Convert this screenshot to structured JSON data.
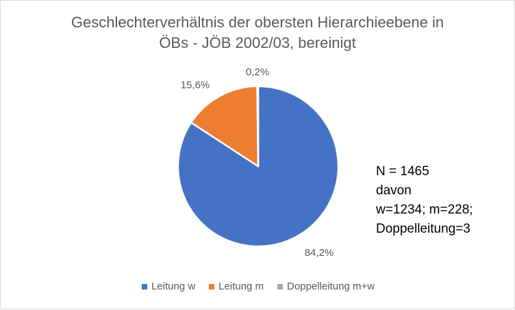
{
  "chart_data": {
    "type": "pie",
    "title": [
      "Geschlechterverhältnis der obersten Hierarchieebene in",
      "ÖBs - JÖB 2002/03, bereinigt"
    ],
    "slices": [
      {
        "name": "Leitung w",
        "value": 84.2,
        "label": "84,2%",
        "color": "#4472C4"
      },
      {
        "name": "Leitung m",
        "value": 15.6,
        "label": "15,6%",
        "color": "#ED7D31"
      },
      {
        "name": "Doppelleitung m+w",
        "value": 0.2,
        "label": "0,2%",
        "color": "#A5A5A5"
      }
    ],
    "legend_position": "bottom",
    "annotation": [
      "N = 1465",
      "davon",
      "w=1234; m=228;",
      "Doppelleitung=3"
    ]
  }
}
